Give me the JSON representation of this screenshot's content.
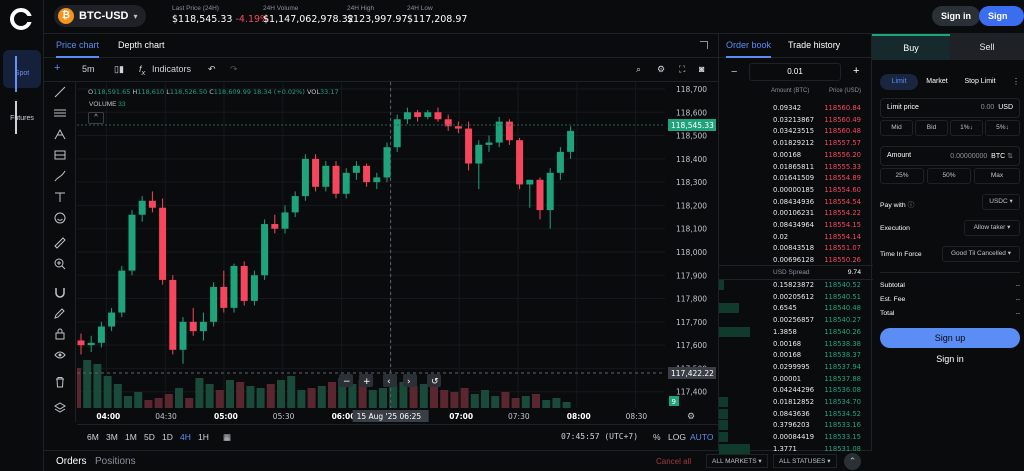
{
  "rail": {
    "items": [
      {
        "label": "Spot",
        "icon": "bars-icon",
        "active": true
      },
      {
        "label": "Futures",
        "icon": "bar-chart-icon",
        "active": false
      }
    ]
  },
  "header": {
    "pair": "BTC-USD",
    "coin_symbol": "₿",
    "stats": [
      {
        "label": "Last Price (24H)",
        "value": "$118,545.33",
        "change": "-4.19%"
      },
      {
        "label": "24H Volume",
        "value": "$1,147,062,978.32"
      },
      {
        "label": "24H High",
        "value": "$123,997.97"
      },
      {
        "label": "24H Low",
        "value": "$117,208.97"
      }
    ],
    "signin": "Sign in",
    "signup": "Sign up"
  },
  "chart_tabs": [
    "Price chart",
    "Depth chart"
  ],
  "toolbar": {
    "interval": "5m",
    "indicators": "Indicators",
    "fx": "f",
    "fx_sub": "x"
  },
  "legend": {
    "o_lbl": "O",
    "o": "118,591.65",
    "h_lbl": "H",
    "h": "118,610",
    "l_lbl": "L",
    "l": "118,526.50",
    "c_lbl": "C",
    "c": "118,609.99",
    "chg": "18.34 (+0.02%)",
    "vol_lbl": "VOL",
    "vol": "33.17",
    "volume_lbl": "VOLUME",
    "volume": "33",
    "collapse": "^"
  },
  "chart_data": {
    "type": "candlestick",
    "y_ticks": [
      118700,
      118600,
      118500,
      118400,
      118300,
      118200,
      118100,
      118000,
      117900,
      117800,
      117700,
      117600,
      117500,
      117400
    ],
    "y_tick_labels": [
      "118,700",
      "118,600",
      "118,500",
      "118,400",
      "118,300",
      "118,200",
      "118,100",
      "118,000",
      "117,900",
      "117,800",
      "117,700",
      "117,600",
      "117,500",
      "117,400"
    ],
    "ylim": [
      117330,
      118730
    ],
    "x_tick_labels": [
      "04:00",
      "04:30",
      "05:00",
      "05:30",
      "06:00",
      "06:25",
      "07:00",
      "07:30",
      "08:00",
      "08:30"
    ],
    "x_tick_minutes": [
      240,
      270,
      300,
      330,
      360,
      385,
      420,
      450,
      480,
      510
    ],
    "xlim": [
      225,
      525
    ],
    "crosshair_date": "15 Aug '25",
    "crosshair_time": "06:25",
    "crosshair_price": "117,422.22",
    "last_price": "118,545.33",
    "last_price_value": 118545.33,
    "volume_flag": "9",
    "green": "#1fa37a",
    "red": "#f6465d",
    "candles": [
      {
        "o": 117620,
        "h": 117650,
        "l": 117560,
        "c": 117600
      },
      {
        "o": 117600,
        "h": 117640,
        "l": 117570,
        "c": 117610
      },
      {
        "o": 117610,
        "h": 117700,
        "l": 117590,
        "c": 117680
      },
      {
        "o": 117680,
        "h": 117760,
        "l": 117660,
        "c": 117740
      },
      {
        "o": 117740,
        "h": 117940,
        "l": 117720,
        "c": 117920
      },
      {
        "o": 117920,
        "h": 118180,
        "l": 117900,
        "c": 118160
      },
      {
        "o": 118160,
        "h": 118240,
        "l": 118130,
        "c": 118220
      },
      {
        "o": 118220,
        "h": 118260,
        "l": 118170,
        "c": 118190
      },
      {
        "o": 118190,
        "h": 118230,
        "l": 117860,
        "c": 117880
      },
      {
        "o": 117880,
        "h": 117900,
        "l": 117560,
        "c": 117580
      },
      {
        "o": 117580,
        "h": 117720,
        "l": 117520,
        "c": 117700
      },
      {
        "o": 117700,
        "h": 117760,
        "l": 117640,
        "c": 117660
      },
      {
        "o": 117660,
        "h": 117740,
        "l": 117620,
        "c": 117700
      },
      {
        "o": 117700,
        "h": 117870,
        "l": 117680,
        "c": 117850
      },
      {
        "o": 117850,
        "h": 117920,
        "l": 117740,
        "c": 117760
      },
      {
        "o": 117760,
        "h": 117950,
        "l": 117740,
        "c": 117940
      },
      {
        "o": 117940,
        "h": 117960,
        "l": 117770,
        "c": 117790
      },
      {
        "o": 117790,
        "h": 117920,
        "l": 117770,
        "c": 117900
      },
      {
        "o": 117900,
        "h": 118140,
        "l": 117880,
        "c": 118120
      },
      {
        "o": 118120,
        "h": 118160,
        "l": 118080,
        "c": 118100
      },
      {
        "o": 118100,
        "h": 118200,
        "l": 118080,
        "c": 118170
      },
      {
        "o": 118170,
        "h": 118260,
        "l": 118150,
        "c": 118240
      },
      {
        "o": 118240,
        "h": 118420,
        "l": 118220,
        "c": 118400
      },
      {
        "o": 118400,
        "h": 118420,
        "l": 118260,
        "c": 118280
      },
      {
        "o": 118280,
        "h": 118390,
        "l": 118260,
        "c": 118370
      },
      {
        "o": 118370,
        "h": 118390,
        "l": 118230,
        "c": 118250
      },
      {
        "o": 118250,
        "h": 118360,
        "l": 118230,
        "c": 118340
      },
      {
        "o": 118340,
        "h": 118390,
        "l": 118310,
        "c": 118370
      },
      {
        "o": 118370,
        "h": 118380,
        "l": 118280,
        "c": 118300
      },
      {
        "o": 118300,
        "h": 118340,
        "l": 118270,
        "c": 118320
      },
      {
        "o": 118320,
        "h": 118470,
        "l": 118300,
        "c": 118450
      },
      {
        "o": 118450,
        "h": 118590,
        "l": 118430,
        "c": 118570
      },
      {
        "o": 118570,
        "h": 118620,
        "l": 118550,
        "c": 118600
      },
      {
        "o": 118600,
        "h": 118610,
        "l": 118560,
        "c": 118580
      },
      {
        "o": 118580,
        "h": 118610,
        "l": 118570,
        "c": 118600
      },
      {
        "o": 118600,
        "h": 118620,
        "l": 118560,
        "c": 118570
      },
      {
        "o": 118570,
        "h": 118590,
        "l": 118520,
        "c": 118540
      },
      {
        "o": 118540,
        "h": 118560,
        "l": 118510,
        "c": 118530
      },
      {
        "o": 118530,
        "h": 118560,
        "l": 118350,
        "c": 118380
      },
      {
        "o": 118380,
        "h": 118480,
        "l": 118270,
        "c": 118460
      },
      {
        "o": 118460,
        "h": 118500,
        "l": 118430,
        "c": 118470
      },
      {
        "o": 118470,
        "h": 118580,
        "l": 118450,
        "c": 118560
      },
      {
        "o": 118560,
        "h": 118570,
        "l": 118460,
        "c": 118480
      },
      {
        "o": 118480,
        "h": 118490,
        "l": 118270,
        "c": 118290
      },
      {
        "o": 118290,
        "h": 118310,
        "l": 118190,
        "c": 118310
      },
      {
        "o": 118310,
        "h": 118320,
        "l": 118140,
        "c": 118180
      },
      {
        "o": 118180,
        "h": 118360,
        "l": 118100,
        "c": 118340
      },
      {
        "o": 118340,
        "h": 118450,
        "l": 118310,
        "c": 118430
      },
      {
        "o": 118430,
        "h": 118540,
        "l": 118400,
        "c": 118520
      }
    ],
    "volumes": [
      20,
      24,
      22,
      16,
      12,
      6,
      8,
      4,
      5,
      7,
      10,
      5,
      15,
      12,
      9,
      14,
      13,
      11,
      10,
      12,
      14,
      16,
      9,
      10,
      11,
      13,
      15,
      12,
      14,
      9,
      10,
      12,
      13,
      11,
      12,
      14,
      9,
      8,
      10,
      7,
      9,
      6,
      8,
      5,
      6,
      7,
      4,
      5,
      3
    ]
  },
  "chart_controls": {
    "minus": "−",
    "plus": "+",
    "left": "‹",
    "right": "›",
    "reset": "↺"
  },
  "chart_bottom": {
    "timeframes": [
      "6M",
      "3M",
      "1M",
      "5D",
      "1D",
      "4H",
      "1H"
    ],
    "active_tf": "4H",
    "clock": "07:45:57 (UTC+7)",
    "pct": "%",
    "log": "LOG",
    "auto": "AUTO"
  },
  "orders_bar": {
    "orders": "Orders",
    "positions": "Positions",
    "cancel_all": "Cancel all",
    "all_markets": "ALL MARKETS",
    "all_statuses": "ALL STATUSES"
  },
  "order_book": {
    "tabs": [
      "Order book",
      "Trade history"
    ],
    "tick": "0.01",
    "minus": "−",
    "plus": "+",
    "col_amount": "Amount (BTC)",
    "col_price": "Price (USD)",
    "spread_label": "USD Spread",
    "spread_value": "9.74",
    "asks": [
      {
        "amount": "0.09342",
        "price": "118560.84",
        "depth": 0
      },
      {
        "amount": "0.03213867",
        "price": "118560.49",
        "depth": 0
      },
      {
        "amount": "0.03423515",
        "price": "118560.48",
        "depth": 0
      },
      {
        "amount": "0.01829212",
        "price": "118557.57",
        "depth": 0
      },
      {
        "amount": "0.00168",
        "price": "118556.20",
        "depth": 0
      },
      {
        "amount": "0.01865811",
        "price": "118555.33",
        "depth": 0
      },
      {
        "amount": "0.01641509",
        "price": "118554.89",
        "depth": 0
      },
      {
        "amount": "0.00000185",
        "price": "118554.60",
        "depth": 0
      },
      {
        "amount": "0.08434936",
        "price": "118554.54",
        "depth": 0
      },
      {
        "amount": "0.00106231",
        "price": "118554.22",
        "depth": 0
      },
      {
        "amount": "0.08434964",
        "price": "118554.15",
        "depth": 0
      },
      {
        "amount": "0.02",
        "price": "118554.14",
        "depth": 0
      },
      {
        "amount": "0.00843518",
        "price": "118551.07",
        "depth": 0
      },
      {
        "amount": "0.00696128",
        "price": "118550.26",
        "depth": 0
      }
    ],
    "bids": [
      {
        "amount": "0.15823872",
        "price": "118540.52",
        "depth": 0.03
      },
      {
        "amount": "0.00205612",
        "price": "118540.51",
        "depth": 0
      },
      {
        "amount": "0.6545",
        "price": "118540.48",
        "depth": 0.13
      },
      {
        "amount": "0.00256857",
        "price": "118540.27",
        "depth": 0
      },
      {
        "amount": "1.3858",
        "price": "118540.26",
        "depth": 0.2
      },
      {
        "amount": "0.00168",
        "price": "118538.38",
        "depth": 0
      },
      {
        "amount": "0.00168",
        "price": "118538.37",
        "depth": 0
      },
      {
        "amount": "0.0299995",
        "price": "118537.94",
        "depth": 0
      },
      {
        "amount": "0.00001",
        "price": "118537.88",
        "depth": 0
      },
      {
        "amount": "0.04244296",
        "price": "118536.08",
        "depth": 0
      },
      {
        "amount": "0.01812852",
        "price": "118534.70",
        "depth": 0.06
      },
      {
        "amount": "0.0843636",
        "price": "118534.52",
        "depth": 0.06
      },
      {
        "amount": "0.3796203",
        "price": "118533.16",
        "depth": 0.06
      },
      {
        "amount": "0.00084419",
        "price": "118533.15",
        "depth": 0.06
      },
      {
        "amount": "1.3771",
        "price": "118531.08",
        "depth": 0.2
      }
    ]
  },
  "trade": {
    "buy": "Buy",
    "sell": "Sell",
    "types": [
      "Limit",
      "Market",
      "Stop Limit"
    ],
    "limit_price_label": "Limit price",
    "limit_price_value": "0.00",
    "limit_price_unit": "USD",
    "price_chips": [
      "Mid",
      "Bid",
      "1%↓",
      "5%↓"
    ],
    "amount_label": "Amount",
    "amount_value": "0.00000000",
    "amount_unit": "BTC",
    "amount_chips": [
      "25%",
      "50%",
      "Max"
    ],
    "pay_with_label": "Pay with",
    "pay_with_value": "USDC",
    "execution_label": "Execution",
    "execution_value": "Allow taker",
    "tif_label": "Time In Force",
    "tif_value": "Good Til Cancelled",
    "subtotal_label": "Subtotal",
    "est_fee_label": "Est. Fee",
    "total_label": "Total",
    "dash": "--",
    "cta": "Sign up",
    "cta2": "Sign in"
  }
}
